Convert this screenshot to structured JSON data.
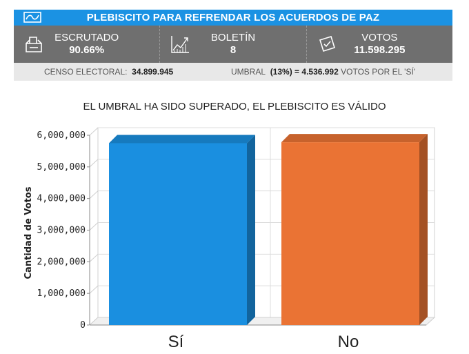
{
  "header": {
    "title": "PLEBISCITO PARA REFRENDAR LOS ACUERDOS DE PAZ"
  },
  "stats": {
    "scrutinized": {
      "label": "ESCRUTADO",
      "value": "90.66%",
      "icon": "ballot-box-icon"
    },
    "bulletin": {
      "label": "BOLETÍN",
      "value": "8",
      "icon": "trend-chart-icon"
    },
    "votes": {
      "label": "VOTOS",
      "value": "11.598.295",
      "icon": "ballot-paper-icon"
    }
  },
  "census": {
    "label": "CENSO ELECTORAL:",
    "value": "34.899.945",
    "threshold_label": "UMBRAL",
    "threshold_pct": "(13%)",
    "threshold_value": "= 4.536.992",
    "threshold_suffix": "VOTOS POR EL 'SÍ'"
  },
  "colors": {
    "header": "#1b92e3",
    "stats_bg": "#6f6f6f",
    "yes": "#1a8fe0",
    "no": "#ea7334"
  },
  "chart_data": {
    "type": "bar",
    "title": "EL UMBRAL HA SIDO SUPERADO, EL PLEBISCITO ES VÁLIDO",
    "ylabel": "Cantidad de Votos",
    "xlabel": "",
    "categories": [
      "Sí",
      "No"
    ],
    "values": [
      5750000,
      5780000
    ],
    "colors": [
      "#1a8fe0",
      "#ea7334"
    ],
    "ylim": [
      0,
      6000000
    ],
    "yticks": [
      "0",
      "1,000,000",
      "2,000,000",
      "3,000,000",
      "4,000,000",
      "5,000,000",
      "6,000,000"
    ],
    "grid": true,
    "style": "3d"
  }
}
